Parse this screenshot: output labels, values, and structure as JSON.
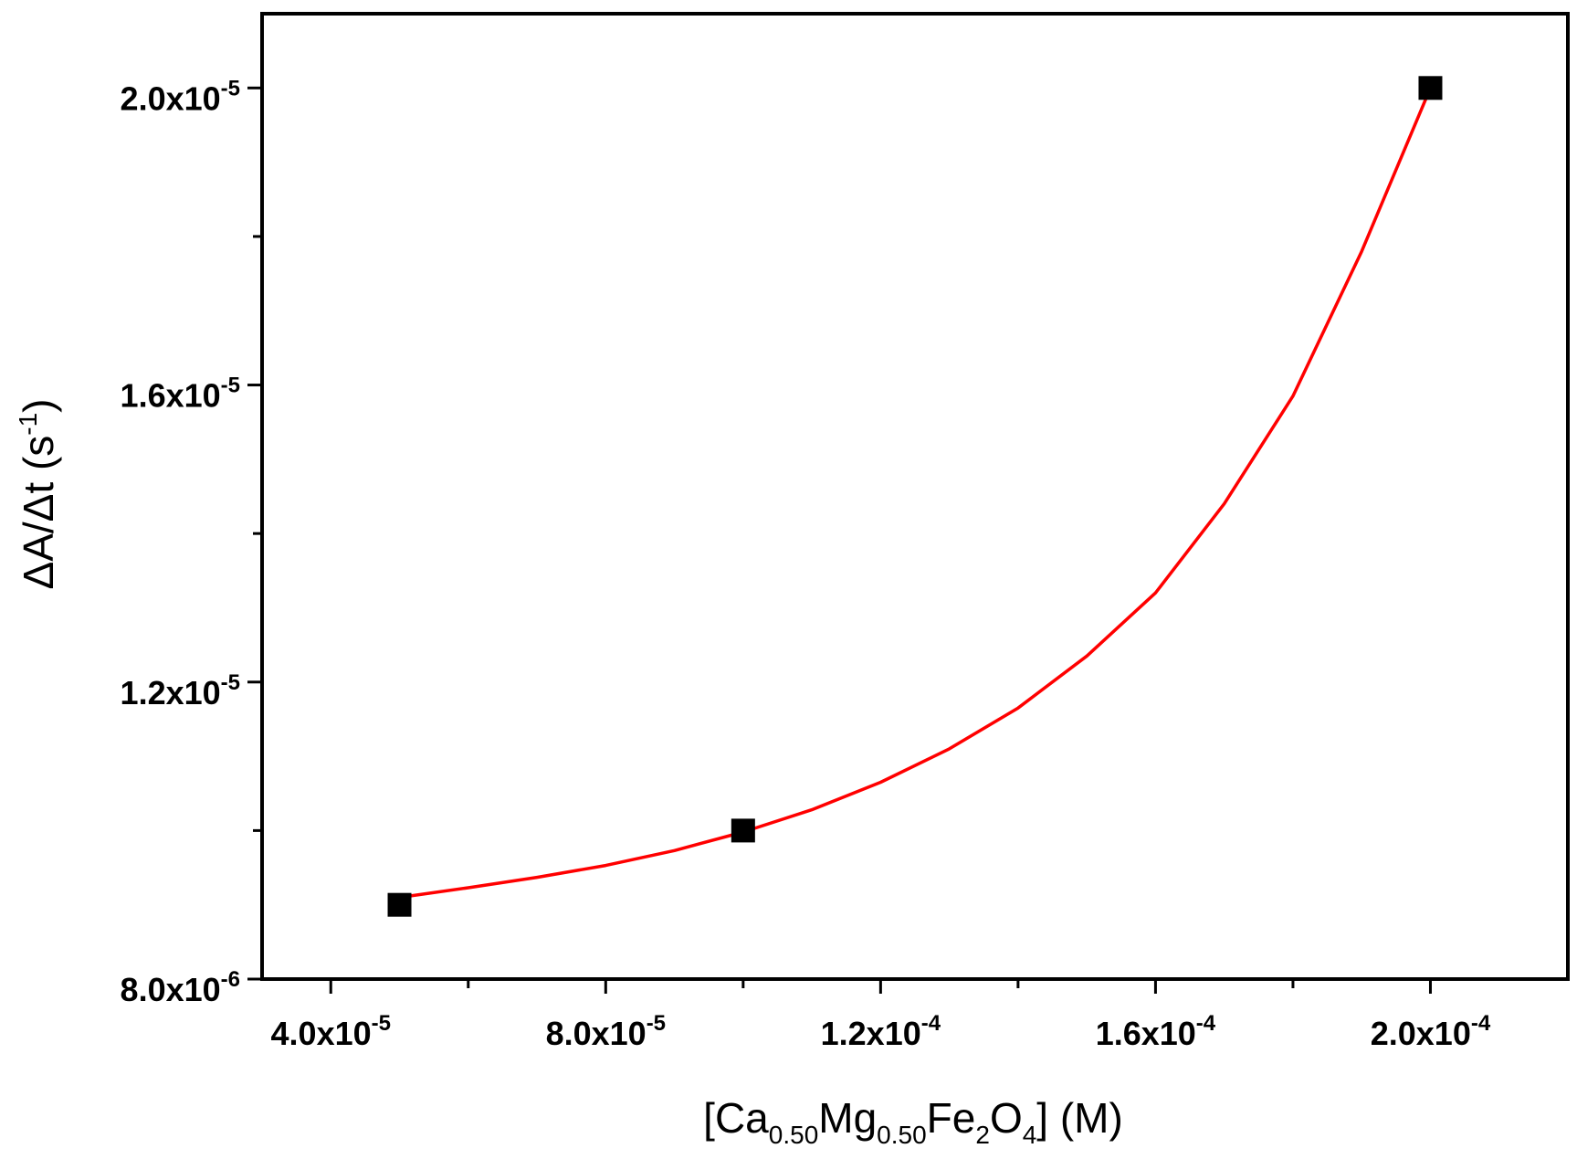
{
  "chart_data": {
    "type": "scatter",
    "xlabel": {
      "parts": [
        {
          "t": "[Ca",
          "s": "n"
        },
        {
          "t": "0.50",
          "s": "sub"
        },
        {
          "t": "Mg",
          "s": "n"
        },
        {
          "t": "0.50",
          "s": "sub"
        },
        {
          "t": "Fe",
          "s": "n"
        },
        {
          "t": "2",
          "s": "sub"
        },
        {
          "t": "O",
          "s": "n"
        },
        {
          "t": "4",
          "s": "sub"
        },
        {
          "t": "] (M)",
          "s": "n"
        }
      ]
    },
    "ylabel": {
      "parts": [
        {
          "t": "ΔA/Δt (s",
          "s": "n"
        },
        {
          "t": "-1",
          "s": "sup"
        },
        {
          "t": ")",
          "s": "n"
        }
      ]
    },
    "xlim": [
      3e-05,
      0.00022
    ],
    "ylim": [
      8e-06,
      2.1e-05
    ],
    "x_ticks": [
      {
        "value": 4e-05,
        "mantissa": "4.0x10",
        "exponent": "-5"
      },
      {
        "value": 8e-05,
        "mantissa": "8.0x10",
        "exponent": "-5"
      },
      {
        "value": 0.00012,
        "mantissa": "1.2x10",
        "exponent": "-4"
      },
      {
        "value": 0.00016,
        "mantissa": "1.6x10",
        "exponent": "-4"
      },
      {
        "value": 0.0002,
        "mantissa": "2.0x10",
        "exponent": "-4"
      }
    ],
    "x_minor_ticks": [
      6e-05,
      0.0001,
      0.00014,
      0.00018
    ],
    "y_ticks": [
      {
        "value": 8e-06,
        "mantissa": "8.0x10",
        "exponent": "-6"
      },
      {
        "value": 1.2e-05,
        "mantissa": "1.2x10",
        "exponent": "-5"
      },
      {
        "value": 1.6e-05,
        "mantissa": "1.6x10",
        "exponent": "-5"
      },
      {
        "value": 2e-05,
        "mantissa": "2.0x10",
        "exponent": "-5"
      }
    ],
    "y_minor_ticks": [
      1e-05,
      1.4e-05,
      1.8e-05
    ],
    "series": [
      {
        "type": "scatter",
        "marker": "square",
        "color": "#000000",
        "x": [
          5e-05,
          0.0001,
          0.0002
        ],
        "y": [
          9e-06,
          1e-05,
          2e-05
        ]
      },
      {
        "type": "line",
        "color": "#ff0000",
        "x": [
          5e-05,
          6e-05,
          7e-05,
          8e-05,
          9e-05,
          0.0001,
          0.00011,
          0.00012,
          0.00013,
          0.00014,
          0.00015,
          0.00016,
          0.00017,
          0.00018,
          0.00019,
          0.0002
        ],
        "y": [
          9.1e-06,
          9.23e-06,
          9.37e-06,
          9.53e-06,
          9.73e-06,
          9.98e-06,
          1.028e-05,
          1.065e-05,
          1.11e-05,
          1.165e-05,
          1.235e-05,
          1.32e-05,
          1.44e-05,
          1.585e-05,
          1.78e-05,
          2e-05
        ]
      }
    ],
    "grid": false,
    "legend": "none"
  }
}
